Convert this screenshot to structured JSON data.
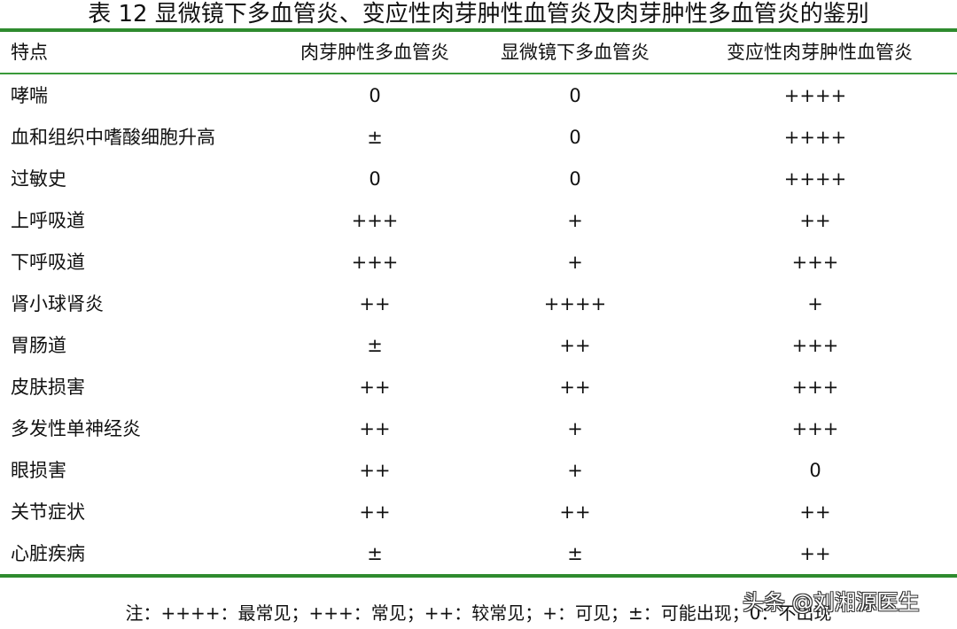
{
  "title": "表 12  显微镜下多血管炎、变应性肉芽肿性血管炎及肉芽肿性多血管炎的鉴别",
  "header": [
    "特点",
    "肉芽肿性多血管炎",
    "显微镜下多血管炎",
    "变应性肉芽肿性血管炎"
  ],
  "rows": [
    [
      "哮喘",
      "0",
      "0",
      "++++"
    ],
    [
      "血和组织中嗜酸细胞升高",
      "±",
      "0",
      "++++"
    ],
    [
      "过敏史",
      "0",
      "0",
      "++++"
    ],
    [
      "上呼吸道",
      "+++",
      "+",
      "++"
    ],
    [
      "下呼吸道",
      "+++",
      "+",
      "+++"
    ],
    [
      "肾小球肾炎",
      "++",
      "++++",
      "+"
    ],
    [
      "胃肠道",
      "±",
      "++",
      "+++"
    ],
    [
      "皮肤损害",
      "++",
      "++",
      "+++"
    ],
    [
      "多发性单神经炎",
      "++",
      "+",
      "+++"
    ],
    [
      "眼损害",
      "++",
      "+",
      "0"
    ],
    [
      "关节症状",
      "++",
      "++",
      "++"
    ],
    [
      "心脏疾病",
      "±",
      "±",
      "++"
    ]
  ],
  "note": "注：++++：最常见；+++：常见；++：较常见；+：可见；±：可能出现；0：不出现",
  "watermark": "头条 @刘湘源医生",
  "colors": {
    "rule": "#2e8b2e"
  }
}
